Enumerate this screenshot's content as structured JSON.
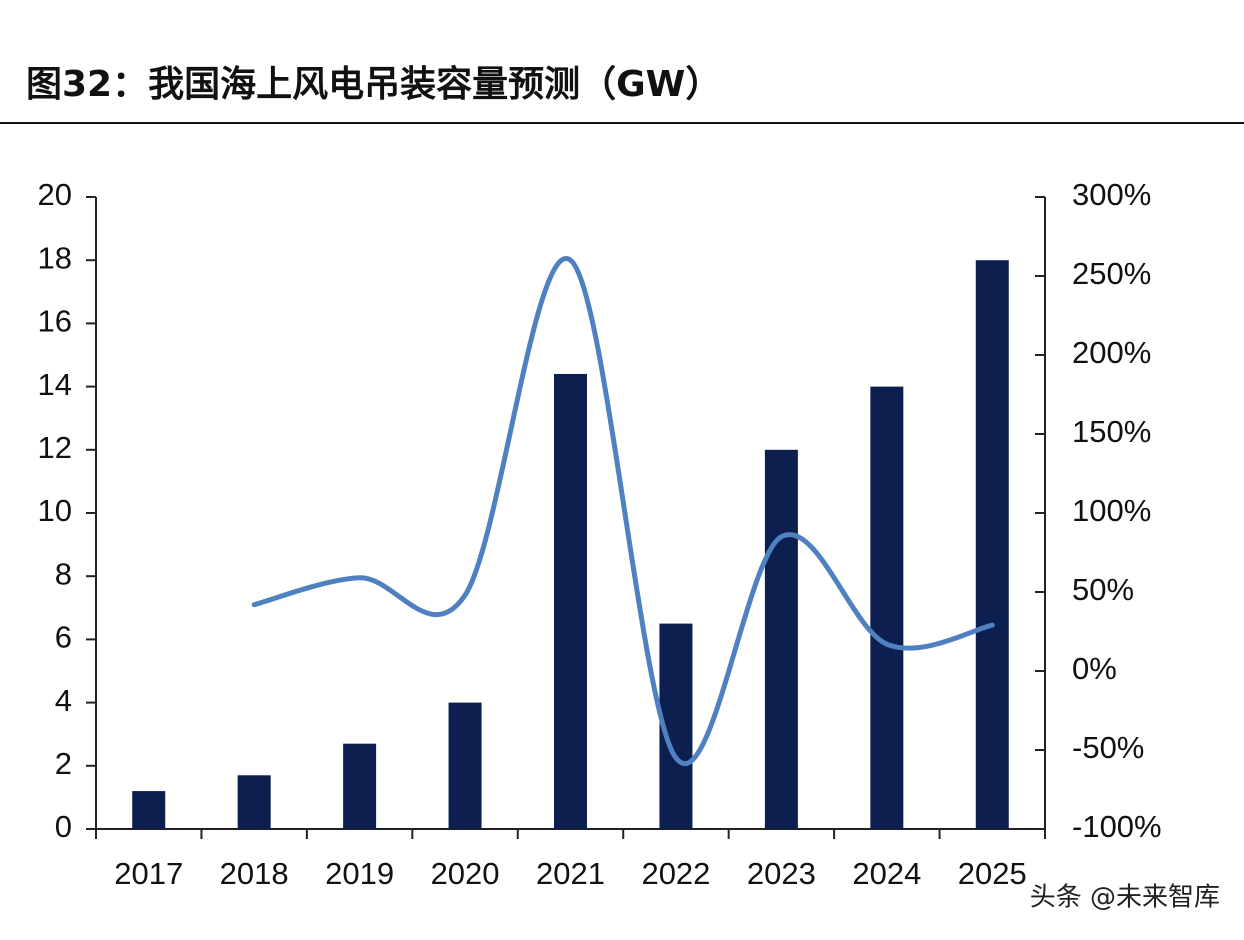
{
  "chart_data": {
    "type": "bar",
    "title": "图32：我国海上风电吊装容量预测（GW）",
    "categories": [
      "2017",
      "2018",
      "2019",
      "2020",
      "2021",
      "2022",
      "2023",
      "2024",
      "2025"
    ],
    "series": [
      {
        "type": "bar",
        "color": "#0d1f4f",
        "values": [
          1.2,
          1.7,
          2.7,
          4.0,
          14.4,
          6.5,
          12.0,
          14.0,
          18.0
        ]
      },
      {
        "type": "line",
        "color": "#4f81c1",
        "axis": "y2",
        "values": [
          null,
          42,
          59,
          48,
          260,
          -55,
          85,
          17,
          29
        ]
      }
    ],
    "ylim": [
      0,
      20
    ],
    "yticks": [
      0,
      2,
      4,
      6,
      8,
      10,
      12,
      14,
      16,
      18,
      20
    ],
    "y2lim": [
      -100,
      300
    ],
    "y2ticks": [
      {
        "value": -100,
        "label": "-100%"
      },
      {
        "value": -50,
        "label": "-50%"
      },
      {
        "value": 0,
        "label": "0%"
      },
      {
        "value": 50,
        "label": "50%"
      },
      {
        "value": 100,
        "label": "100%"
      },
      {
        "value": 150,
        "label": "150%"
      },
      {
        "value": 200,
        "label": "200%"
      },
      {
        "value": 250,
        "label": "250%"
      },
      {
        "value": 300,
        "label": "300%"
      }
    ],
    "watermark": "头条 @未来智库"
  }
}
